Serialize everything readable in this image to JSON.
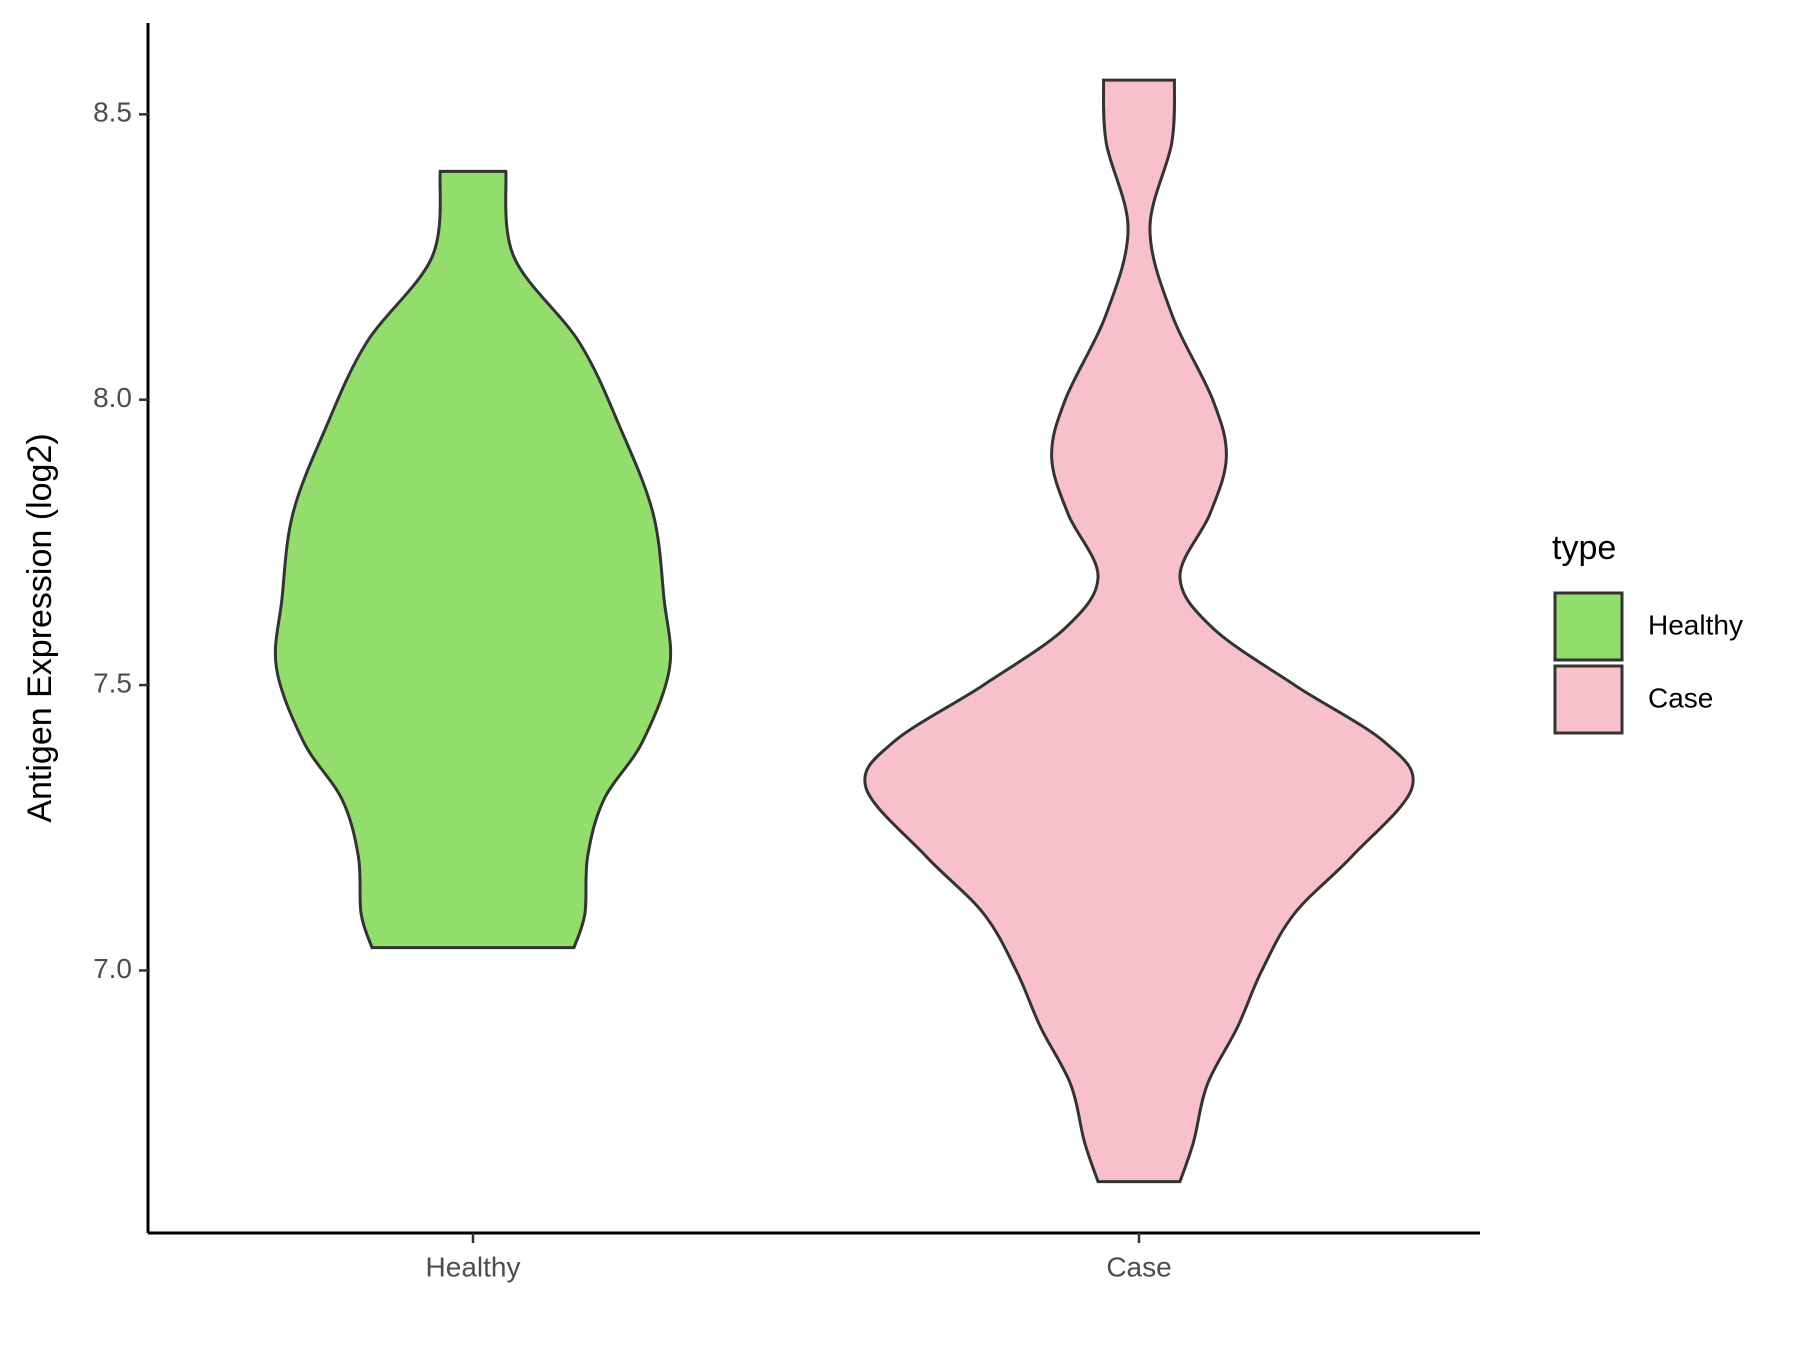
{
  "chart_data": {
    "type": "violin",
    "ylabel": "Antigen Expression (log2)",
    "legend_title": "type",
    "categories": [
      "Healthy",
      "Case"
    ],
    "ylim": [
      6.54,
      8.66
    ],
    "yticks": [
      {
        "value": 7,
        "label": "7.0"
      },
      7.5,
      {
        "value": 8,
        "label": "8.0"
      },
      8.5
    ],
    "series": [
      {
        "name": "Healthy",
        "color": "#93dd6c",
        "y": [
          8.4,
          8.25,
          8.1,
          7.95,
          7.8,
          7.65,
          7.53,
          7.4,
          7.3,
          7.2,
          7.1,
          7.04
        ],
        "density": [
          0.12,
          0.15,
          0.39,
          0.54,
          0.66,
          0.7,
          0.72,
          0.62,
          0.48,
          0.42,
          0.41,
          0.37
        ]
      },
      {
        "name": "Case",
        "color": "#f8c0cb",
        "y": [
          8.56,
          8.45,
          8.3,
          8.15,
          8.0,
          7.9,
          7.8,
          7.69,
          7.6,
          7.5,
          7.4,
          7.32,
          7.2,
          7.1,
          7.0,
          6.9,
          6.8,
          6.7,
          6.63
        ],
        "density": [
          0.13,
          0.12,
          0.04,
          0.12,
          0.27,
          0.32,
          0.26,
          0.15,
          0.27,
          0.57,
          0.9,
          1.0,
          0.78,
          0.57,
          0.45,
          0.36,
          0.25,
          0.2,
          0.15
        ]
      }
    ]
  }
}
